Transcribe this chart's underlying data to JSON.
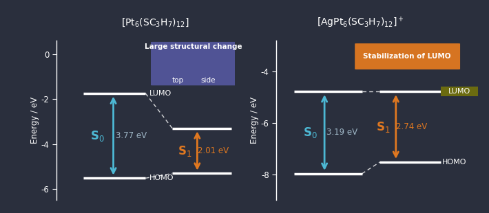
{
  "bg_color": "#2a2f3d",
  "left_panel": {
    "title": "[Pt$_6$(SC$_3$H$_7$)$_{12}$]",
    "title_bg": "#4a4e8a",
    "title_color": "white",
    "ylim": [
      -6.5,
      0.6
    ],
    "yticks": [
      0,
      -2,
      -4,
      -6
    ],
    "ylabel": "Energy / eV",
    "lumo_energy": -1.75,
    "homo_energy": -5.52,
    "excited_lumo": -3.3,
    "excited_homo": -5.31,
    "s0_label": "S$_0$",
    "s0_value": "3.77 eV",
    "s1_label": "S$_1$",
    "s1_value": "2.01 eV",
    "arrow_color_s0": "#4db8d4",
    "arrow_color_s1": "#e07820",
    "level_color": "white",
    "annotation_bg": "#5558a0",
    "annotation_text": "Large structural change",
    "top_label": "top",
    "side_label": "side"
  },
  "right_panel": {
    "title": "[AgPt$_6$(SC$_3$H$_7$)$_{12}$]$^+$",
    "title_bg": "#7c2a0a",
    "title_color": "white",
    "ylim": [
      -9.0,
      -2.8
    ],
    "yticks": [
      -4,
      -6,
      -8
    ],
    "ylabel": "Energy / eV",
    "lumo_energy": -4.78,
    "homo_energy": -7.97,
    "excited_lumo": -4.78,
    "excited_homo": -7.52,
    "s0_label": "S$_0$",
    "s0_value": "3.19 eV",
    "s1_label": "S$_1$",
    "s1_value": "2.74 eV",
    "arrow_color_s0": "#4db8d4",
    "arrow_color_s1": "#e07820",
    "level_color": "white",
    "annotation_bg": "#e07820",
    "annotation_text": "Stabilization of LUMO",
    "lumo_label_bg": "#6b6b10",
    "lumo_label": "LUMO",
    "homo_label": "HOMO"
  }
}
